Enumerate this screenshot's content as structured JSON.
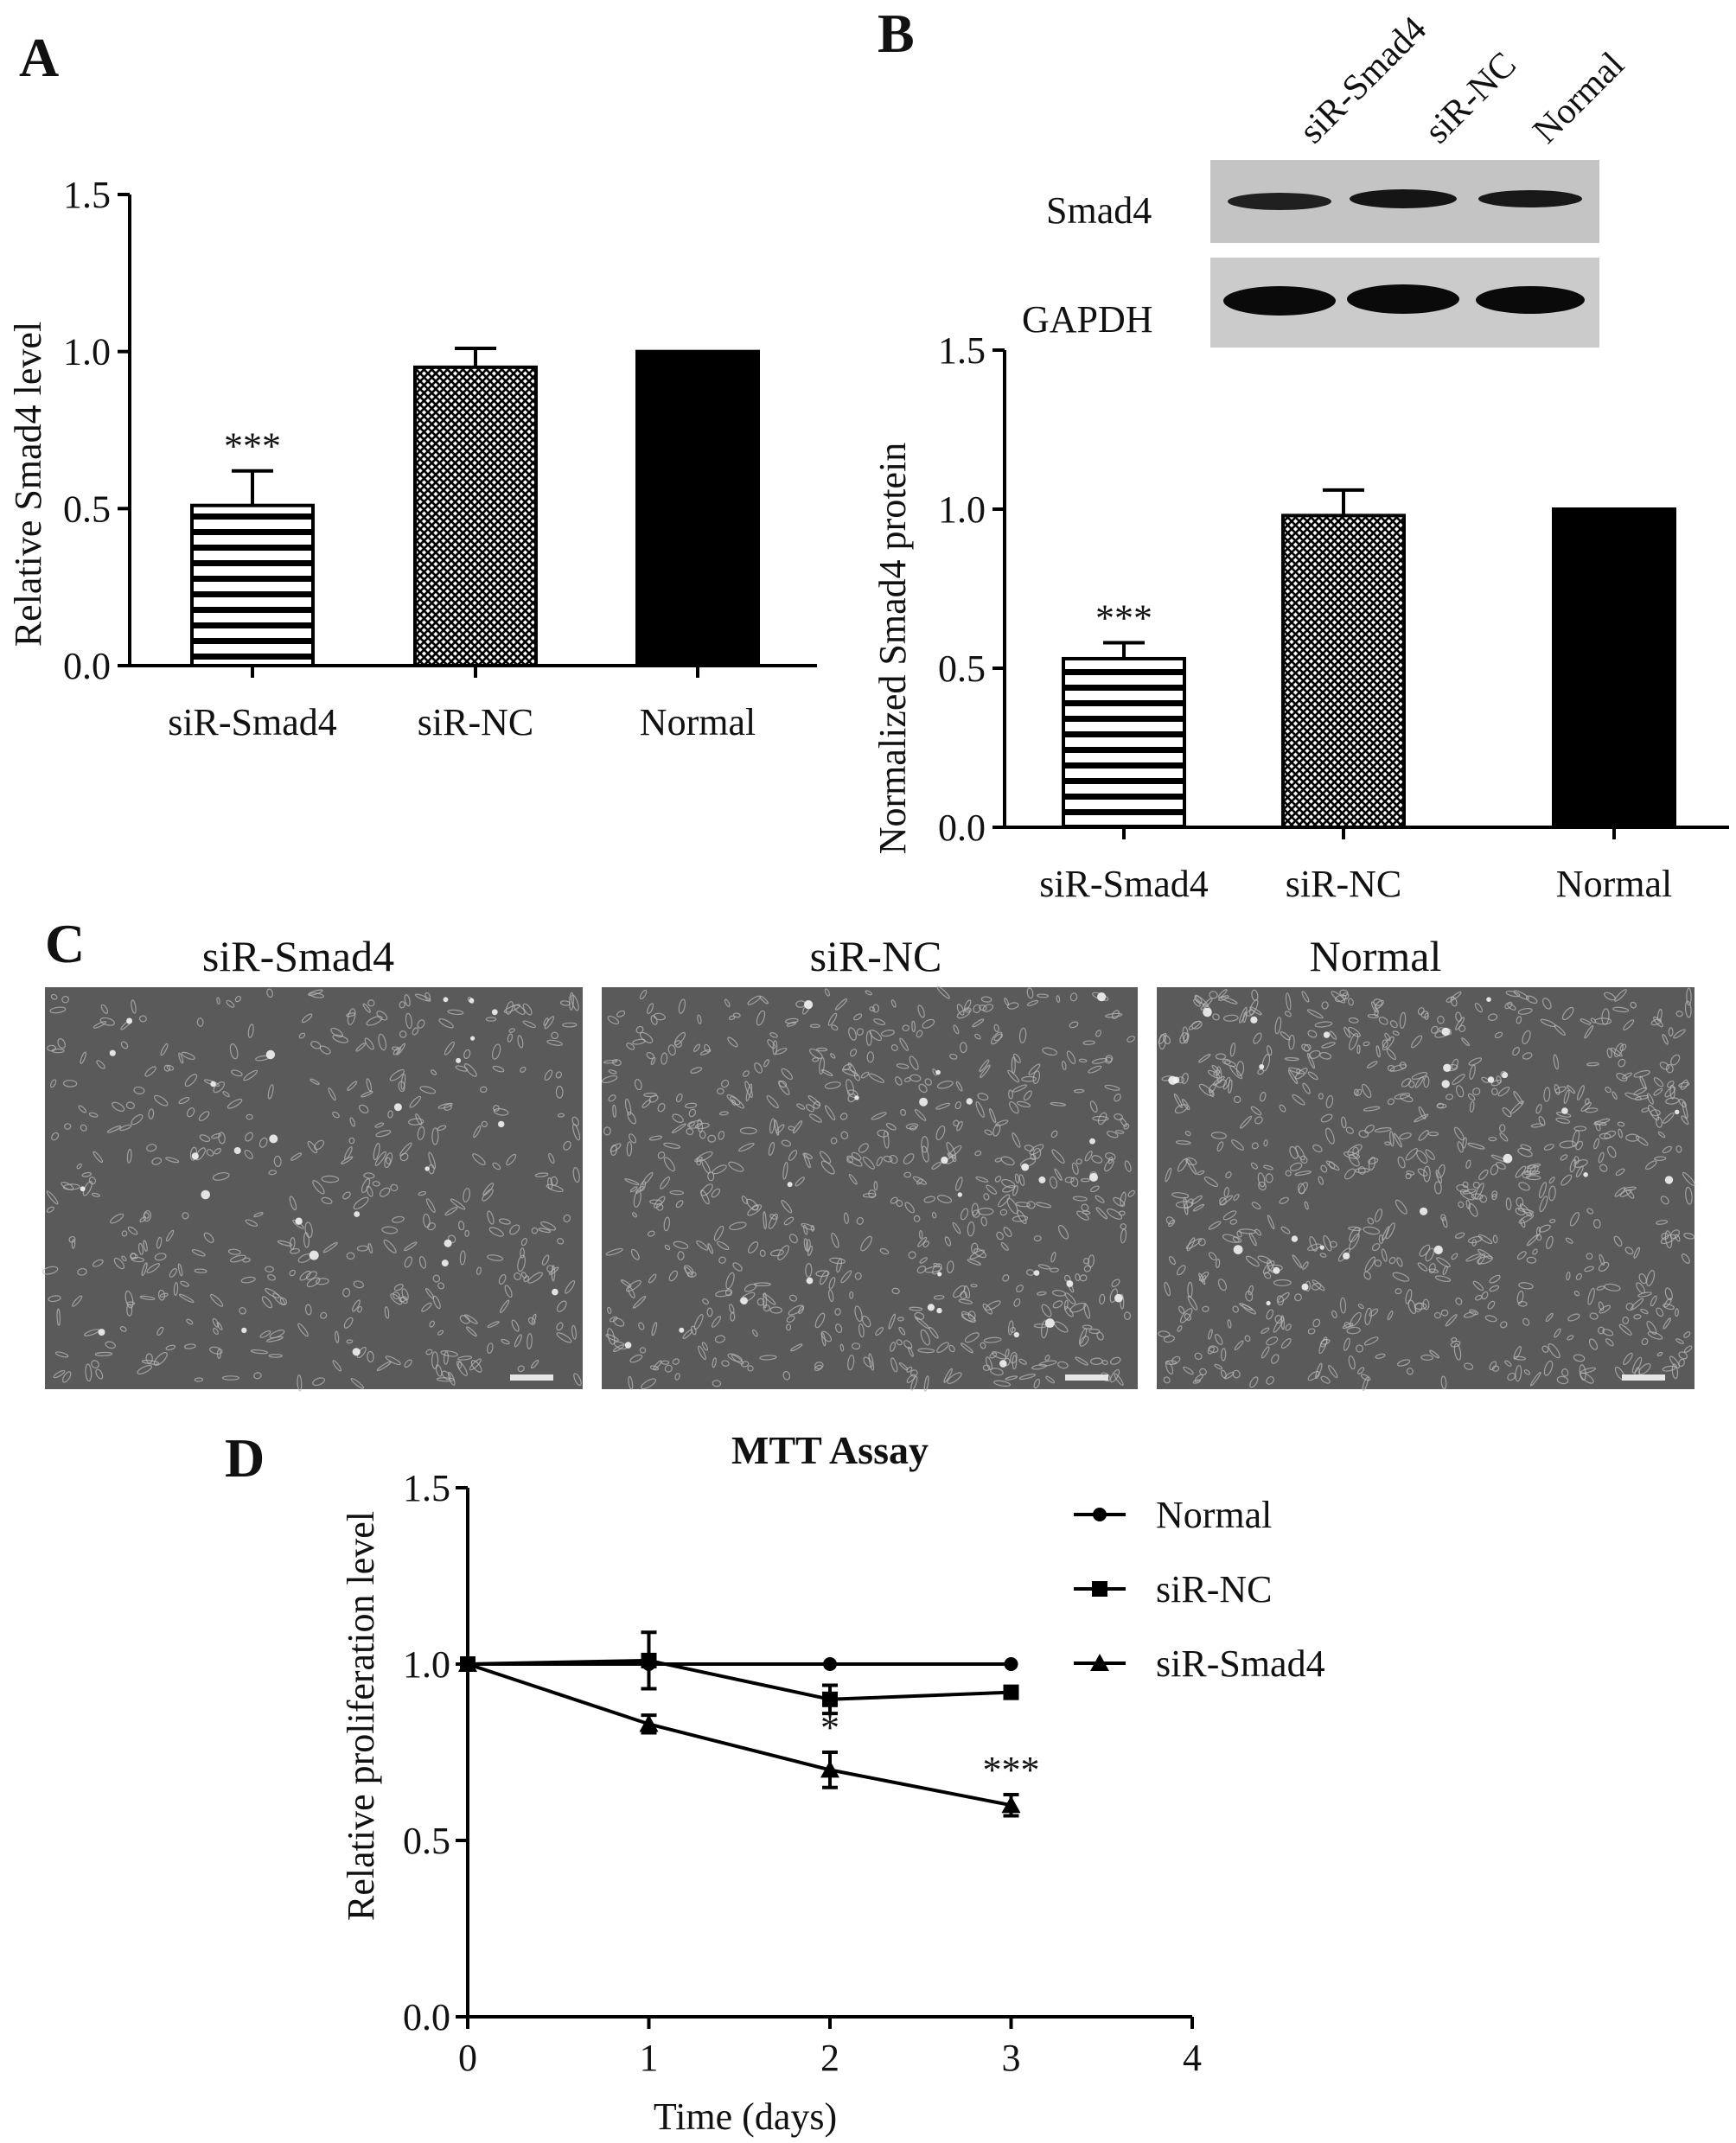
{
  "panels": {
    "a": {
      "letter": "A"
    },
    "b": {
      "letter": "B"
    },
    "c": {
      "letter": "C"
    },
    "d": {
      "letter": "D"
    }
  },
  "blot": {
    "lanes": [
      "siR-Smad4",
      "siR-NC",
      "Normal"
    ],
    "bands": [
      "Smad4",
      "GAPDH"
    ]
  },
  "micrographs": {
    "titles": [
      "siR-Smad4",
      "siR-NC",
      "Normal"
    ]
  },
  "colors": {
    "normal_fill": "#000000",
    "blot_bg": "#c8c8c8",
    "micro_bg": "#5a5a5a",
    "cell_color": "#b8b8b8"
  },
  "chart_data": [
    {
      "id": "A",
      "type": "bar",
      "categories": [
        "siR-Smad4",
        "siR-NC",
        "Normal"
      ],
      "values": [
        0.51,
        0.95,
        1.0
      ],
      "errors": [
        0.11,
        0.06,
        0.0
      ],
      "fills": [
        "horizontal-stripes",
        "crosshatch",
        "solid-black"
      ],
      "annotations": [
        "***",
        "",
        ""
      ],
      "ylabel": "Relative Smad4 level",
      "ylim": [
        0,
        1.5
      ],
      "yticks": [
        0.0,
        0.5,
        1.0,
        1.5
      ],
      "ytick_labels": [
        "0.0",
        "0.5",
        "1.0",
        "1.5"
      ],
      "grid": false
    },
    {
      "id": "B",
      "type": "bar",
      "categories": [
        "siR-Smad4",
        "siR-NC",
        "Normal"
      ],
      "values": [
        0.53,
        0.98,
        1.0
      ],
      "errors": [
        0.05,
        0.08,
        0.0
      ],
      "fills": [
        "horizontal-stripes",
        "crosshatch",
        "solid-black"
      ],
      "annotations": [
        "***",
        "",
        ""
      ],
      "ylabel": "Normalized Smad4 protein",
      "ylim": [
        0,
        1.5
      ],
      "yticks": [
        0.0,
        0.5,
        1.0,
        1.5
      ],
      "ytick_labels": [
        "0.0",
        "0.5",
        "1.0",
        "1.5"
      ],
      "grid": false
    },
    {
      "id": "D",
      "type": "line",
      "title": "MTT Assay",
      "xlabel": "Time (days)",
      "ylabel": "Relative proliferation level",
      "xlim": [
        0,
        4
      ],
      "ylim": [
        0,
        1.5
      ],
      "xticks": [
        0,
        1,
        2,
        3,
        4
      ],
      "xtick_labels": [
        "0",
        "1",
        "2",
        "3",
        "4"
      ],
      "yticks": [
        0.0,
        0.5,
        1.0,
        1.5
      ],
      "ytick_labels": [
        "0.0",
        "0.5",
        "1.0",
        "1.5"
      ],
      "legend_position": "right",
      "grid": false,
      "series": [
        {
          "name": "Normal",
          "marker": "circle",
          "x": [
            0,
            1,
            2,
            3
          ],
          "y": [
            1.0,
            1.0,
            1.0,
            1.0
          ],
          "errors": [
            0,
            0,
            0,
            0
          ]
        },
        {
          "name": "siR-NC",
          "marker": "square",
          "x": [
            0,
            1,
            2,
            3
          ],
          "y": [
            1.0,
            1.01,
            0.9,
            0.92
          ],
          "errors": [
            0,
            0.08,
            0.04,
            0.015
          ]
        },
        {
          "name": "siR-Smad4",
          "marker": "triangle",
          "x": [
            0,
            1,
            2,
            3
          ],
          "y": [
            1.0,
            0.83,
            0.7,
            0.6
          ],
          "errors": [
            0,
            0.025,
            0.05,
            0.03
          ]
        }
      ],
      "annotations": [
        {
          "x": 2,
          "text": "*"
        },
        {
          "x": 3,
          "text": "***"
        }
      ]
    }
  ]
}
